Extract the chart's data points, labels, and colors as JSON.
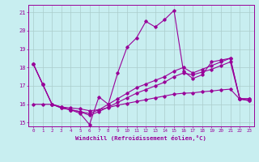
{
  "xlabel": "Windchill (Refroidissement éolien,°C)",
  "background_color": "#c8eef0",
  "grid_color": "#aacccc",
  "line_color": "#990099",
  "xlim_min": -0.5,
  "xlim_max": 23.5,
  "ylim_min": 14.8,
  "ylim_max": 21.4,
  "xticks": [
    0,
    1,
    2,
    3,
    4,
    5,
    6,
    7,
    8,
    9,
    10,
    11,
    12,
    13,
    14,
    15,
    16,
    17,
    18,
    19,
    20,
    21,
    22,
    23
  ],
  "yticks": [
    15,
    16,
    17,
    18,
    19,
    20,
    21
  ],
  "line1_x": [
    0,
    1,
    2,
    3,
    4,
    5,
    6,
    7,
    8,
    9,
    10,
    11,
    12,
    13,
    14,
    15,
    16,
    17,
    18,
    19,
    20,
    21,
    22,
    23
  ],
  "line1_y": [
    18.2,
    17.1,
    16.0,
    15.8,
    15.7,
    15.5,
    14.9,
    16.4,
    16.0,
    17.7,
    19.1,
    19.6,
    20.5,
    20.2,
    20.6,
    21.1,
    17.8,
    17.4,
    17.6,
    18.3,
    18.4,
    18.5,
    16.3,
    16.3
  ],
  "line2_x": [
    0,
    1,
    2,
    3,
    4,
    5,
    6,
    7,
    8,
    9,
    10,
    11,
    12,
    13,
    14,
    15,
    16,
    17,
    18,
    19,
    20,
    21,
    22,
    23
  ],
  "line2_y": [
    18.2,
    17.1,
    16.0,
    15.85,
    15.7,
    15.6,
    15.5,
    15.7,
    16.0,
    16.3,
    16.6,
    16.9,
    17.1,
    17.3,
    17.5,
    17.8,
    18.0,
    17.7,
    17.9,
    18.1,
    18.3,
    18.5,
    16.3,
    16.3
  ],
  "line3_x": [
    0,
    1,
    2,
    3,
    4,
    5,
    6,
    7,
    8,
    9,
    10,
    11,
    12,
    13,
    14,
    15,
    16,
    17,
    18,
    19,
    20,
    21,
    22,
    23
  ],
  "line3_y": [
    18.2,
    17.1,
    16.0,
    15.8,
    15.7,
    15.6,
    15.4,
    15.6,
    15.85,
    16.1,
    16.35,
    16.6,
    16.8,
    17.0,
    17.2,
    17.5,
    17.7,
    17.6,
    17.75,
    17.9,
    18.1,
    18.3,
    16.3,
    16.2
  ],
  "line4_x": [
    0,
    1,
    2,
    3,
    4,
    5,
    6,
    7,
    8,
    9,
    10,
    11,
    12,
    13,
    14,
    15,
    16,
    17,
    18,
    19,
    20,
    21,
    22,
    23
  ],
  "line4_y": [
    16.0,
    16.0,
    16.0,
    15.85,
    15.8,
    15.75,
    15.65,
    15.7,
    15.82,
    15.95,
    16.05,
    16.15,
    16.25,
    16.35,
    16.45,
    16.55,
    16.6,
    16.62,
    16.68,
    16.72,
    16.78,
    16.82,
    16.28,
    16.2
  ]
}
